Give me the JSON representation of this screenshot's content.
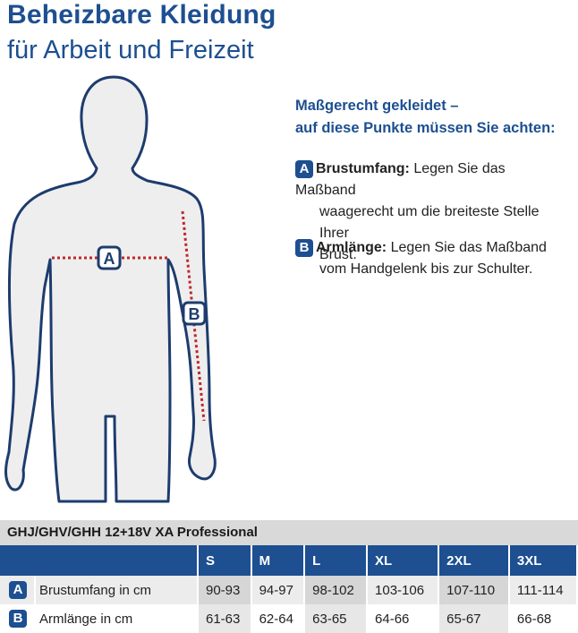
{
  "header": {
    "title": "Beheizbare Kleidung",
    "subtitle": "für Arbeit und Freizeit"
  },
  "figure": {
    "marker_a": "A",
    "marker_b": "B"
  },
  "guide": {
    "heading_line1": "Maßgerecht gekleidet –",
    "heading_line2": "auf diese Punkte müssen Sie achten:",
    "points": [
      {
        "badge": "A",
        "name": "Brustumfang:",
        "line1": " Legen Sie das Maßband",
        "line2": "waagerecht um die breiteste Stelle Ihrer",
        "line3": "Brust."
      },
      {
        "badge": "B",
        "name": "Armlänge:",
        "line1": " Legen Sie das Maßband",
        "line2": "vom Handgelenk bis zur Schulter."
      }
    ]
  },
  "size_table": {
    "title": "GHJ/GHV/GHH 12+18V XA Professional",
    "sizes": [
      "S",
      "M",
      "L",
      "XL",
      "2XL",
      "3XL"
    ],
    "rows": [
      {
        "badge": "A",
        "label": "Brustumfang  in cm",
        "values": [
          "90-93",
          "94-97",
          "98-102",
          "103-106",
          "107-110",
          "111-114"
        ]
      },
      {
        "badge": "B",
        "label": "Armlänge in cm",
        "values": [
          "61-63",
          "62-64",
          "63-65",
          "64-66",
          "65-67",
          "66-68"
        ]
      }
    ]
  },
  "colors": {
    "brand_blue": "#1d4f91",
    "measure_red": "#c0272d",
    "body_fill": "#eeeeee"
  }
}
